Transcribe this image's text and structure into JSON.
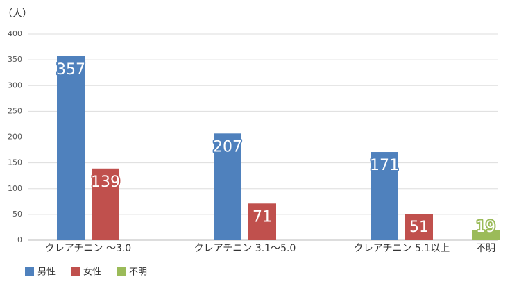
{
  "chart_data": {
    "type": "bar",
    "y_label": "（人）",
    "categories": [
      "クレアチニン ～3.0",
      "クレアチニン 3.1～5.0",
      "クレアチニン 5.1以上",
      "不明"
    ],
    "series": [
      {
        "name": "男性",
        "color": "#4f81bd",
        "values": [
          357,
          207,
          171,
          null
        ]
      },
      {
        "name": "女性",
        "color": "#c0504d",
        "values": [
          139,
          71,
          51,
          null
        ]
      },
      {
        "name": "不明",
        "color": "#9bbb59",
        "values": [
          null,
          null,
          null,
          19
        ]
      }
    ],
    "ylim": [
      0,
      400
    ],
    "yticks": [
      0,
      50,
      100,
      150,
      200,
      250,
      300,
      350,
      400
    ],
    "grid": true
  }
}
